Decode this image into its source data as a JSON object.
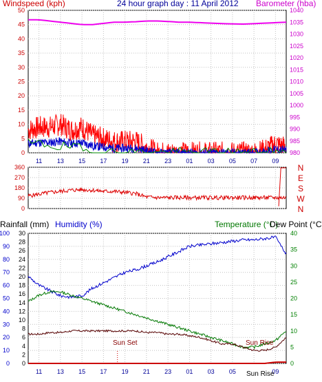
{
  "title": "24 hour graph day : 11 April 2012",
  "colors": {
    "wind": "#ff0000",
    "gust_green": "#008800",
    "wind_blue": "#0000cc",
    "barometer": "#ee00ee",
    "direction": "#dd0000",
    "humidity": "#0000cc",
    "temperature": "#007700",
    "dewpoint": "#550000",
    "rain": "#cc0000",
    "left_axis_text": "#cc0000",
    "right_axis_green": "#008000",
    "title_blue": "#000099",
    "sun_text": "#880000"
  },
  "top_panel": {
    "left_label": "Windspeed (kph)",
    "right_label": "Barometer (hba)",
    "left_ticks": [
      "0",
      "5",
      "10",
      "15",
      "20",
      "25",
      "30",
      "35",
      "40",
      "45",
      "50"
    ],
    "right_ticks": [
      "980",
      "985",
      "990",
      "995",
      "1000",
      "1005",
      "1010",
      "1015",
      "1020",
      "1025",
      "1030",
      "1035",
      "1040"
    ]
  },
  "mid_panel": {
    "left_ticks": [
      "0",
      "90",
      "180",
      "270",
      "360"
    ],
    "dir_labels": [
      "N",
      "W",
      "S",
      "E",
      "N"
    ]
  },
  "bottom_panel": {
    "rain_label": "Rainfall (mm)",
    "humidity_label": "Humidity (%)",
    "temp_label": "Temperature (°C)",
    "dew_label": "Dew Point (°C)",
    "humidity_ticks": [
      "0",
      "10",
      "20",
      "30",
      "40",
      "50",
      "60",
      "70",
      "80",
      "90",
      "100"
    ],
    "rain_ticks": [
      "0",
      "2",
      "4",
      "6",
      "8",
      "10",
      "12",
      "14",
      "16",
      "18",
      "20",
      "22",
      "24",
      "26",
      "28",
      "30"
    ],
    "temp_ticks": [
      "0",
      "5",
      "10",
      "15",
      "20",
      "25",
      "30",
      "35",
      "40"
    ],
    "sunset_label": "Sun Set",
    "sunrise_label": "Sun Rise",
    "sunrise_axis_label": "Sun Rise"
  },
  "x_ticks": [
    "11",
    "13",
    "15",
    "17",
    "19",
    "21",
    "23",
    "01",
    "03",
    "05",
    "07",
    "09"
  ],
  "x_ticks_bottom": [
    "11",
    "13",
    "15",
    "17",
    "19",
    "21",
    "23",
    "01",
    "03",
    "05",
    "09"
  ],
  "chart_data": [
    {
      "type": "line",
      "title": "24 hour graph day : 11 April 2012",
      "x": [
        10,
        11,
        12,
        13,
        14,
        15,
        16,
        17,
        18,
        19,
        20,
        21,
        22,
        23,
        24,
        25,
        26,
        27,
        28,
        29,
        30,
        31,
        32,
        33,
        34
      ],
      "x_ticks": [
        "11",
        "13",
        "15",
        "17",
        "19",
        "21",
        "23",
        "01",
        "03",
        "05",
        "07",
        "09"
      ],
      "series": [
        {
          "name": "Windspeed (kph)",
          "axis": "left",
          "ylim": [
            0,
            50
          ],
          "values": [
            8,
            9,
            9,
            10,
            8,
            9,
            6,
            5,
            4,
            4,
            4,
            2,
            0,
            0,
            0,
            0,
            0,
            0,
            0,
            0,
            0,
            0,
            1,
            3,
            2
          ]
        },
        {
          "name": "Barometer (hba)",
          "axis": "right",
          "ylim": [
            980,
            1040
          ],
          "values": [
            1036,
            1036,
            1035.5,
            1035,
            1034.5,
            1034,
            1034,
            1034.5,
            1035,
            1035,
            1035.2,
            1035.5,
            1035.5,
            1035.3,
            1035,
            1035,
            1034.8,
            1034.6,
            1034.4,
            1034.3,
            1034.2,
            1034.4,
            1034.6,
            1034.8,
            1035
          ]
        }
      ]
    },
    {
      "type": "line",
      "x": [
        10,
        11,
        12,
        13,
        14,
        15,
        16,
        17,
        18,
        19,
        20,
        21,
        22,
        23,
        24,
        25,
        26,
        27,
        28,
        29,
        30,
        31,
        32,
        33,
        34
      ],
      "x_ticks": [
        "11",
        "13",
        "15",
        "17",
        "19",
        "21",
        "23",
        "01",
        "03",
        "05",
        "07",
        "09"
      ],
      "series": [
        {
          "name": "Wind direction",
          "ylim": [
            0,
            360
          ],
          "values": [
            110,
            125,
            140,
            150,
            160,
            165,
            160,
            150,
            150,
            140,
            130,
            100,
            95,
            95,
            95,
            95,
            95,
            95,
            95,
            95,
            95,
            95,
            95,
            95,
            355
          ]
        }
      ]
    },
    {
      "type": "line",
      "x": [
        10,
        11,
        12,
        13,
        14,
        15,
        16,
        17,
        18,
        19,
        20,
        21,
        22,
        23,
        24,
        25,
        26,
        27,
        28,
        29,
        30,
        31,
        32,
        33,
        34
      ],
      "x_ticks": [
        "11",
        "13",
        "15",
        "17",
        "19",
        "21",
        "23",
        "01",
        "03",
        "05",
        "09"
      ],
      "series": [
        {
          "name": "Humidity (%)",
          "axis": "humidity",
          "ylim": [
            0,
            100
          ],
          "values": [
            67,
            60,
            56,
            52,
            51,
            52,
            58,
            62,
            66,
            70,
            72,
            75,
            78,
            82,
            86,
            90,
            91,
            92,
            93,
            94,
            95,
            95,
            96,
            97,
            84
          ]
        },
        {
          "name": "Temperature (°C)",
          "axis": "temp",
          "ylim": [
            0,
            40
          ],
          "values": [
            19,
            21,
            22,
            22,
            21,
            20,
            19,
            18,
            17,
            16,
            15,
            14,
            13,
            12,
            11,
            10,
            9,
            8,
            7,
            6,
            5,
            5,
            6,
            7,
            10
          ]
        },
        {
          "name": "Dew Point (°C)",
          "axis": "temp",
          "ylim": [
            0,
            40
          ],
          "values": [
            9,
            9,
            9.5,
            9.5,
            10,
            10,
            10,
            10,
            10,
            10,
            10,
            9.5,
            9.5,
            9,
            9,
            8.5,
            8,
            7,
            6,
            6,
            5,
            4,
            4,
            5,
            8
          ]
        },
        {
          "name": "Rainfall (mm)",
          "axis": "rain",
          "ylim": [
            0,
            30
          ],
          "values": [
            0,
            0,
            0,
            0,
            0,
            0,
            0,
            0,
            0,
            0,
            0,
            0,
            0,
            0,
            0,
            0,
            0,
            0,
            0,
            0,
            0,
            0,
            0,
            0.3,
            0.3
          ]
        }
      ]
    }
  ]
}
